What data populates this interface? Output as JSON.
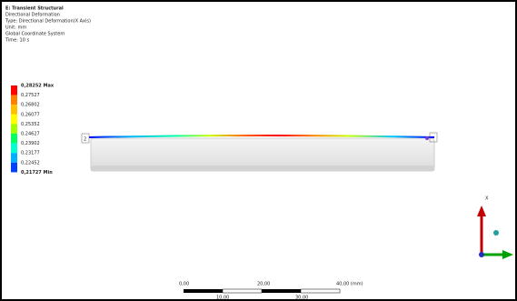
{
  "header": {
    "lines": [
      "E: Transient Structural",
      "Directional Deformation",
      "Type: Directional Deformation(X Axis)",
      "Unit: mm",
      "Global Coordinate System",
      "Time: 10 s"
    ]
  },
  "legend": {
    "entries": [
      "0,28252 Max",
      "0,27527",
      "0,26802",
      "0,26077",
      "0,25352",
      "0,24627",
      "0,23902",
      "0,23177",
      "0,22452",
      "0,21727 Min"
    ]
  },
  "scale_bar": {
    "top_labels": [
      "0,00",
      "20,00",
      "40,00 (mm)"
    ],
    "bottom_labels": [
      "10,00",
      "30,00"
    ]
  },
  "triad": {
    "axis_label": "X"
  },
  "probe_label": "2"
}
